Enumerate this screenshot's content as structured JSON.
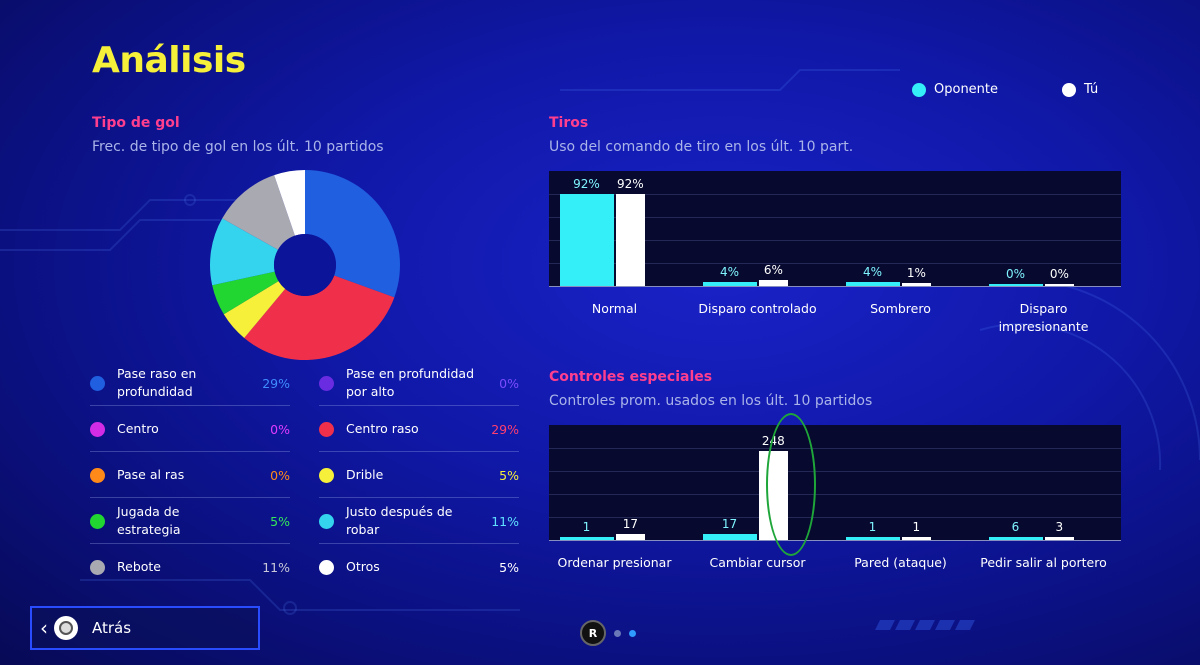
{
  "page": {
    "title": "Análisis",
    "back_label": "Atrás",
    "pager_button": "R",
    "pages": 2,
    "current_page": 2
  },
  "legend": [
    {
      "name": "Oponente",
      "color": "#34eef8"
    },
    {
      "name": "Tú",
      "color": "#ffffff"
    }
  ],
  "goal_type": {
    "title": "Tipo de gol",
    "subtitle": "Frec. de tipo de gol en los últ. 10 partidos",
    "items": [
      {
        "label": "Pase raso en profundidad",
        "value": "29%",
        "pct": 29,
        "color": "#1f5fe0",
        "pct_color": "#3f8cff"
      },
      {
        "label": "Pase en profundidad por alto",
        "value": "0%",
        "pct": 0,
        "color": "#6a2ce0",
        "pct_color": "#7a4cff"
      },
      {
        "label": "Centro",
        "value": "0%",
        "pct": 0,
        "color": "#d22ce6",
        "pct_color": "#e03cff"
      },
      {
        "label": "Centro raso",
        "value": "29%",
        "pct": 29,
        "color": "#f0304a",
        "pct_color": "#ff3f6e"
      },
      {
        "label": "Pase al ras",
        "value": "0%",
        "pct": 0,
        "color": "#ff8a1a",
        "pct_color": "#ff8a1a"
      },
      {
        "label": "Drible",
        "value": "5%",
        "pct": 5,
        "color": "#f7f03a",
        "pct_color": "#f7f03a"
      },
      {
        "label": "Jugada de estrategia",
        "value": "5%",
        "pct": 5,
        "color": "#22d632",
        "pct_color": "#33e85a"
      },
      {
        "label": "Justo después de robar",
        "value": "11%",
        "pct": 11,
        "color": "#35d4ee",
        "pct_color": "#5fe0ff"
      },
      {
        "label": "Rebote",
        "value": "11%",
        "pct": 11,
        "color": "#a9a9b2",
        "pct_color": "#c8c8d8"
      },
      {
        "label": "Otros",
        "value": "5%",
        "pct": 5,
        "color": "#ffffff",
        "pct_color": "#ffffff"
      }
    ]
  },
  "shots": {
    "title": "Tiros",
    "subtitle": "Uso del comando de tiro en los últ. 10 part."
  },
  "special": {
    "title": "Controles especiales",
    "subtitle": "Controles prom. usados en los últ. 10 partidos"
  },
  "chart_data": [
    {
      "type": "bar",
      "title": "Tiros",
      "categories": [
        "Normal",
        "Disparo controlado",
        "Sombrero",
        "Disparo impresionante"
      ],
      "series": [
        {
          "name": "Oponente",
          "values": [
            92,
            4,
            4,
            0
          ],
          "labels": [
            "92%",
            "4%",
            "4%",
            "0%"
          ]
        },
        {
          "name": "Tú",
          "values": [
            92,
            6,
            1,
            0
          ],
          "labels": [
            "92%",
            "6%",
            "1%",
            "0%"
          ]
        }
      ],
      "ylim": [
        0,
        100
      ]
    },
    {
      "type": "bar",
      "title": "Controles especiales",
      "categories": [
        "Ordenar presionar",
        "Cambiar cursor",
        "Pared (ataque)",
        "Pedir salir al portero"
      ],
      "series": [
        {
          "name": "Oponente",
          "values": [
            1,
            17,
            1,
            6
          ],
          "labels": [
            "1",
            "17",
            "1",
            "6"
          ]
        },
        {
          "name": "Tú",
          "values": [
            17,
            248,
            1,
            3
          ],
          "labels": [
            "17",
            "248",
            "1",
            "3"
          ]
        }
      ],
      "ylim": [
        0,
        280
      ]
    }
  ]
}
